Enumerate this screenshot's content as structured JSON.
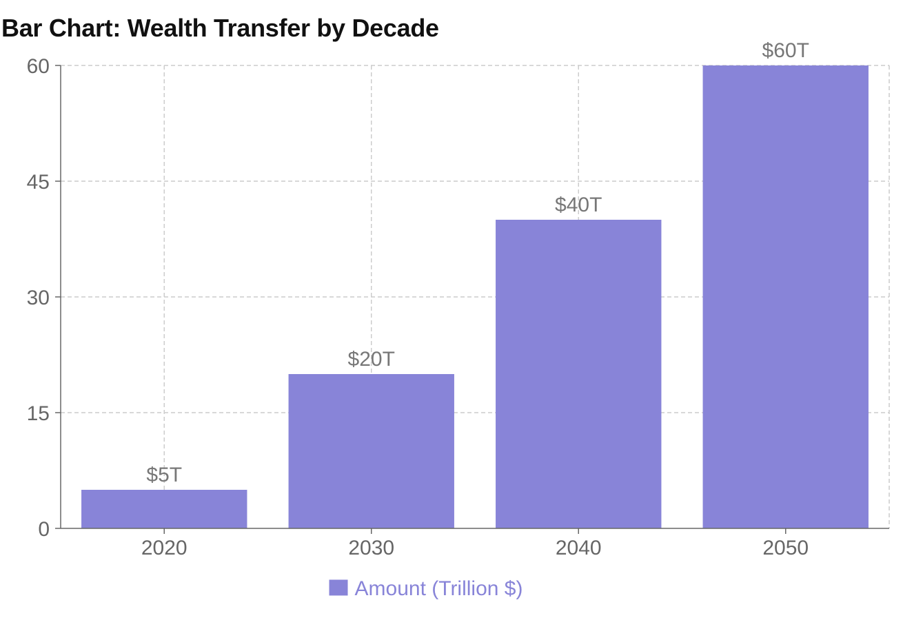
{
  "chart_data": {
    "type": "bar",
    "title": "Bar Chart: Wealth Transfer by Decade",
    "categories": [
      "2020",
      "2030",
      "2040",
      "2050"
    ],
    "series": [
      {
        "name": "Amount (Trillion $)",
        "values": [
          5,
          20,
          40,
          60
        ],
        "color": "#8884d8"
      }
    ],
    "data_labels": [
      "$5T",
      "$20T",
      "$40T",
      "$60T"
    ],
    "ylim": [
      0,
      60
    ],
    "yticks": [
      0,
      15,
      30,
      45,
      60
    ],
    "xlabel": "",
    "ylabel": "",
    "grid": true,
    "legend": "bottom-center"
  }
}
